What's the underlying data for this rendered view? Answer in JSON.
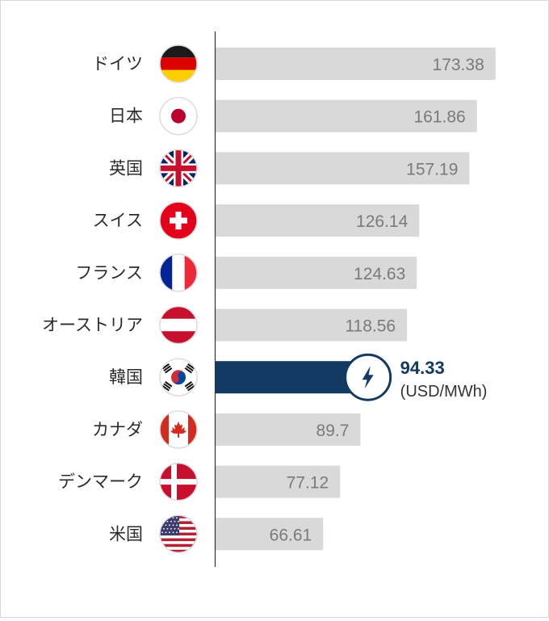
{
  "chart_data": {
    "type": "bar",
    "orientation": "horizontal",
    "categories": [
      "ドイツ",
      "日本",
      "英国",
      "スイス",
      "フランス",
      "オーストリア",
      "韓国",
      "カナダ",
      "デンマーク",
      "米国"
    ],
    "values": [
      173.38,
      161.86,
      157.19,
      126.14,
      124.63,
      118.56,
      94.33,
      89.7,
      77.12,
      66.61
    ],
    "value_labels": [
      "173.38",
      "161.86",
      "157.19",
      "126.14",
      "124.63",
      "118.56",
      "94.33",
      "89.7",
      "77.12",
      "66.61"
    ],
    "flags": [
      "germany-flag-icon",
      "japan-flag-icon",
      "uk-flag-icon",
      "switzerland-flag-icon",
      "france-flag-icon",
      "austria-flag-icon",
      "korea-flag-icon",
      "canada-flag-icon",
      "denmark-flag-icon",
      "usa-flag-icon"
    ],
    "highlight": {
      "category": "韓国",
      "value_label": "94.33",
      "unit": "(USD/MWh)",
      "icon": "lightning-bolt-icon"
    },
    "xlim": [
      0,
      180
    ],
    "grid": false,
    "legend": "none"
  },
  "colors": {
    "bar": "#d9d9d9",
    "highlight_bar": "#123a63",
    "value_text": "#7a7a7a",
    "label_text": "#2b2b2b",
    "axis": "#333333"
  }
}
